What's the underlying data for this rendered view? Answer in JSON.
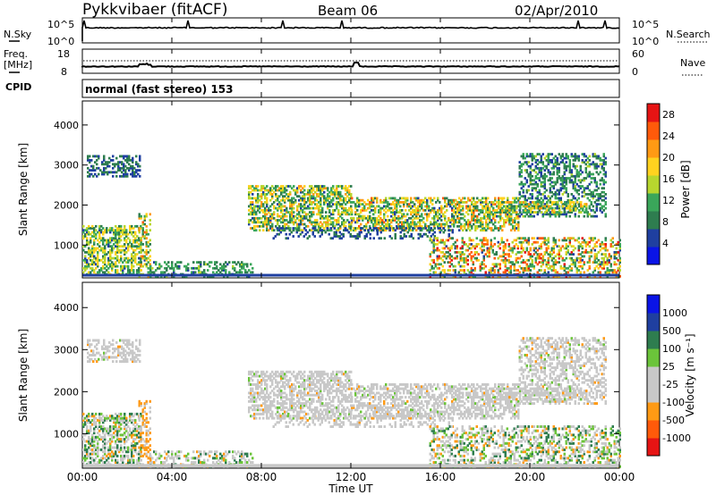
{
  "header": {
    "station": "Pykkvibaer (fitACF)",
    "beam": "Beam 06",
    "date": "02/Apr/2010"
  },
  "noise_panel": {
    "left_label": "N.Sky",
    "right_label": "N.Search",
    "left_ticks": [
      "10^5",
      "10^0"
    ],
    "right_ticks": [
      "10^5",
      "10^0"
    ]
  },
  "freq_panel": {
    "left_label_1": "Freq.",
    "left_label_2": "[MHz]",
    "right_label": "Nave",
    "left_ticks": [
      "18",
      "8"
    ],
    "right_ticks": [
      "60",
      "0"
    ]
  },
  "cpid": {
    "label": "CPID",
    "value": "normal (fast stereo) 153"
  },
  "x_axis": {
    "label": "Time UT",
    "ticks": [
      "00:00",
      "04:00",
      "08:00",
      "12:00",
      "16:00",
      "20:00",
      "00:00"
    ]
  },
  "colors": {
    "power": [
      "#0a14e6",
      "#1f3fa0",
      "#2e7d4f",
      "#3aa65a",
      "#b7d62e",
      "#ffd21f",
      "#ff9a14",
      "#ff5a0a",
      "#e61414"
    ],
    "velocity": [
      "#e61414",
      "#ff5a0a",
      "#ff9a14",
      "#c8c8c8",
      "#c8c8c8",
      "#6bc43a",
      "#2e7d4f",
      "#1f3fa0",
      "#0a14e6"
    ]
  },
  "chart_data": [
    {
      "type": "heatmap",
      "title": "Power",
      "xlabel": "Time UT",
      "ylabel": "Slant Range [km]",
      "xlim": [
        0,
        24
      ],
      "ylim": [
        180,
        4600
      ],
      "y_ticks": [
        "1000",
        "2000",
        "3000",
        "4000"
      ],
      "colorbar_label": "Power [dB]",
      "colorbar_ticks": [
        "4",
        "8",
        "12",
        "16",
        "20",
        "24",
        "28"
      ],
      "colorbar_range": [
        0,
        30
      ]
    },
    {
      "type": "heatmap",
      "title": "Velocity",
      "xlabel": "Time UT",
      "ylabel": "Slant Range [km]",
      "xlim": [
        0,
        24
      ],
      "ylim": [
        180,
        4600
      ],
      "y_ticks": [
        "1000",
        "2000",
        "3000",
        "4000"
      ],
      "colorbar_label": "Velocity [m s⁻¹]",
      "colorbar_ticks": [
        "-1000",
        "-500",
        "-100",
        "-25",
        "25",
        "100",
        "500",
        "1000"
      ]
    }
  ]
}
